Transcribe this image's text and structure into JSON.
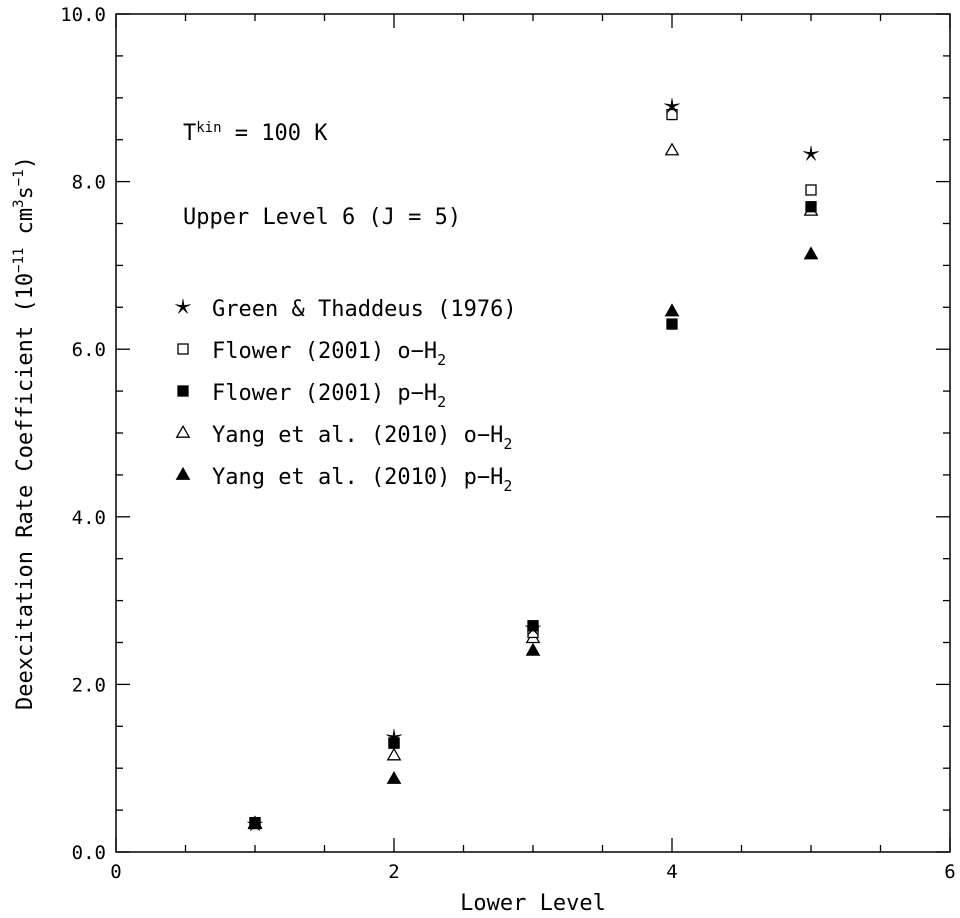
{
  "chart_data": {
    "type": "scatter",
    "title": "",
    "xlabel": "Lower Level",
    "ylabel": {
      "prefix": "Deexcitation Rate Coefficient (10",
      "exp1": "−11",
      "mid": " cm",
      "exp2": "3",
      "mid2": "s",
      "exp3": "−1",
      "suffix": ")"
    },
    "xlim": [
      0,
      6
    ],
    "ylim": [
      0,
      10
    ],
    "x_ticks": [
      0,
      2,
      4,
      6
    ],
    "x_tick_labels": [
      "0",
      "2",
      "4",
      "6"
    ],
    "y_ticks": [
      0,
      2,
      4,
      6,
      8,
      10
    ],
    "y_tick_labels": [
      "0.0",
      "2.0",
      "4.0",
      "6.0",
      "8.0",
      "10.0"
    ],
    "grid": false,
    "legend_position": "center-left",
    "annotations": {
      "temperature": {
        "main": "T",
        "sup": "kin",
        "rest": " = 100 K"
      },
      "upper_level": "Upper Level 6 (J = 5)"
    },
    "series": [
      {
        "name": "Green & Thaddeus (1976)",
        "label_main": "Green & Thaddeus (1976)",
        "label_sub": "",
        "marker": "star",
        "x": [
          1,
          2,
          3,
          4,
          5
        ],
        "y": [
          0.33,
          1.37,
          2.67,
          8.9,
          8.33
        ]
      },
      {
        "name": "Flower (2001) o-H2",
        "label_main": "Flower (2001) o−H",
        "label_sub": "2",
        "marker": "square-open",
        "x": [
          1,
          2,
          3,
          4,
          5
        ],
        "y": [
          0.34,
          1.3,
          2.62,
          8.8,
          7.9
        ]
      },
      {
        "name": "Flower (2001) p-H2",
        "label_main": "Flower (2001) p−H",
        "label_sub": "2",
        "marker": "square-filled",
        "x": [
          1,
          2,
          3,
          4,
          5
        ],
        "y": [
          0.35,
          1.3,
          2.7,
          6.3,
          7.7
        ]
      },
      {
        "name": "Yang et al. (2010) o-H2",
        "label_main": "Yang et al. (2010) o−H",
        "label_sub": "2",
        "marker": "triangle-open",
        "x": [
          1,
          2,
          3,
          4,
          5
        ],
        "y": [
          0.34,
          1.15,
          2.55,
          8.37,
          7.65
        ]
      },
      {
        "name": "Yang et al. (2010) p-H2",
        "label_main": "Yang et al. (2010) p−H",
        "label_sub": "2",
        "marker": "triangle-filled",
        "x": [
          1,
          2,
          3,
          4,
          5
        ],
        "y": [
          0.33,
          0.87,
          2.4,
          6.45,
          7.13
        ]
      }
    ]
  }
}
